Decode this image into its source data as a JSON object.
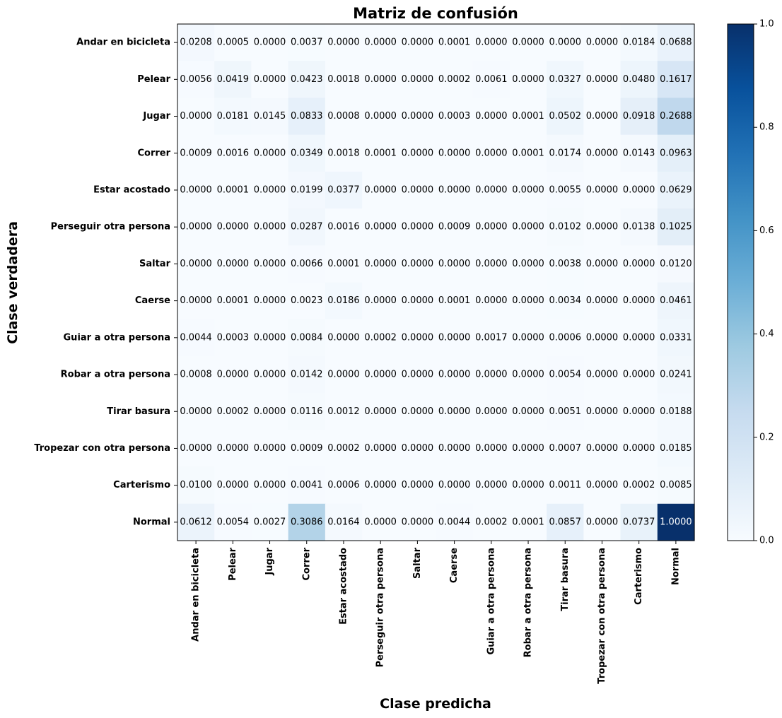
{
  "chart_data": {
    "type": "heatmap",
    "title": "Matriz de confusión",
    "xlabel": "Clase predicha",
    "ylabel": "Clase verdadera",
    "row_labels": [
      "Andar en bicicleta",
      "Pelear",
      "Jugar",
      "Correr",
      "Estar acostado",
      "Perseguir otra persona",
      "Saltar",
      "Caerse",
      "Guiar a otra persona",
      "Robar a otra persona",
      "Tirar basura",
      "Tropezar con otra persona",
      "Carterismo",
      "Normal"
    ],
    "col_labels": [
      "Andar en bicicleta",
      "Pelear",
      "Jugar",
      "Correr",
      "Estar acostado",
      "Perseguir otra persona",
      "Saltar",
      "Caerse",
      "Guiar a otra persona",
      "Robar a otra persona",
      "Tirar basura",
      "Tropezar con otra persona",
      "Carterismo",
      "Normal"
    ],
    "values": [
      [
        0.0208,
        0.0005,
        0.0,
        0.0037,
        0.0,
        0.0,
        0.0,
        0.0001,
        0.0,
        0.0,
        0.0,
        0.0,
        0.0184,
        0.0688
      ],
      [
        0.0056,
        0.0419,
        0.0,
        0.0423,
        0.0018,
        0.0,
        0.0,
        0.0002,
        0.0061,
        0.0,
        0.0327,
        0.0,
        0.048,
        0.1617
      ],
      [
        0.0,
        0.0181,
        0.0145,
        0.0833,
        0.0008,
        0.0,
        0.0,
        0.0003,
        0.0,
        0.0001,
        0.0502,
        0.0,
        0.0918,
        0.2688
      ],
      [
        0.0009,
        0.0016,
        0.0,
        0.0349,
        0.0018,
        0.0001,
        0.0,
        0.0,
        0.0,
        0.0001,
        0.0174,
        0.0,
        0.0143,
        0.0963
      ],
      [
        0.0,
        0.0001,
        0.0,
        0.0199,
        0.0377,
        0.0,
        0.0,
        0.0,
        0.0,
        0.0,
        0.0055,
        0.0,
        0.0,
        0.0629
      ],
      [
        0.0,
        0.0,
        0.0,
        0.0287,
        0.0016,
        0.0,
        0.0,
        0.0009,
        0.0,
        0.0,
        0.0102,
        0.0,
        0.0138,
        0.1025
      ],
      [
        0.0,
        0.0,
        0.0,
        0.0066,
        0.0001,
        0.0,
        0.0,
        0.0,
        0.0,
        0.0,
        0.0038,
        0.0,
        0.0,
        0.012
      ],
      [
        0.0,
        0.0001,
        0.0,
        0.0023,
        0.0186,
        0.0,
        0.0,
        0.0001,
        0.0,
        0.0,
        0.0034,
        0.0,
        0.0,
        0.0461
      ],
      [
        0.0044,
        0.0003,
        0.0,
        0.0084,
        0.0,
        0.0002,
        0.0,
        0.0,
        0.0017,
        0.0,
        0.0006,
        0.0,
        0.0,
        0.0331
      ],
      [
        0.0008,
        0.0,
        0.0,
        0.0142,
        0.0,
        0.0,
        0.0,
        0.0,
        0.0,
        0.0,
        0.0054,
        0.0,
        0.0,
        0.0241
      ],
      [
        0.0,
        0.0002,
        0.0,
        0.0116,
        0.0012,
        0.0,
        0.0,
        0.0,
        0.0,
        0.0,
        0.0051,
        0.0,
        0.0,
        0.0188
      ],
      [
        0.0,
        0.0,
        0.0,
        0.0009,
        0.0002,
        0.0,
        0.0,
        0.0,
        0.0,
        0.0,
        0.0007,
        0.0,
        0.0,
        0.0185
      ],
      [
        0.01,
        0.0,
        0.0,
        0.0041,
        0.0006,
        0.0,
        0.0,
        0.0,
        0.0,
        0.0,
        0.0011,
        0.0,
        0.0002,
        0.0085
      ],
      [
        0.0612,
        0.0054,
        0.0027,
        0.3086,
        0.0164,
        0.0,
        0.0,
        0.0044,
        0.0002,
        0.0001,
        0.0857,
        0.0,
        0.0737,
        1.0
      ]
    ],
    "colorbar": {
      "colormap": "Blues",
      "range": [
        0.0,
        1.0
      ],
      "ticks": [
        "0.0",
        "0.2",
        "0.4",
        "0.6",
        "0.8",
        "1.0"
      ]
    },
    "grid": false,
    "legend": "colorbar-right"
  }
}
